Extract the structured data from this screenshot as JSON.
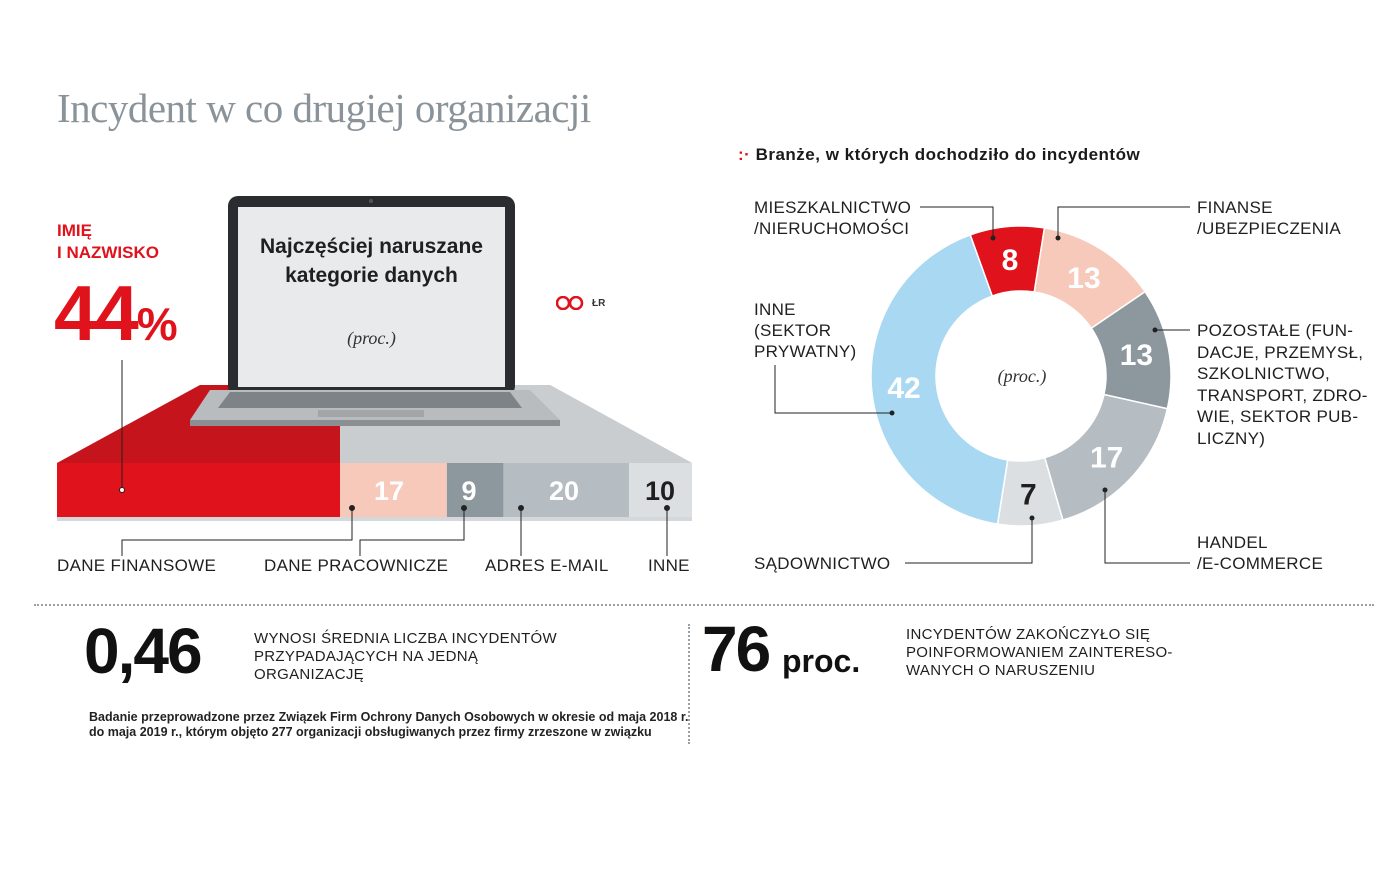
{
  "title": "Incydent w co drugiej organizacji",
  "colors": {
    "red": "#e0121b",
    "pink": "#f6c9bb",
    "dark_gray": "#8d979e",
    "mid_gray": "#b5bcc2",
    "light_gray": "#dcdfe1",
    "light_blue": "#a9d8f3"
  },
  "chart_data": [
    {
      "type": "bar",
      "orientation": "horizontal-stacked",
      "title": "Najczęściej naruszane kategorie danych",
      "unit_note": "(proc.)",
      "source_logo": "ŁR",
      "highlight": {
        "label_line1": "IMIĘ",
        "label_line2": "I NAZWISKO",
        "value": 44,
        "value_text": "44",
        "pct_sign": "%"
      },
      "segments": [
        {
          "label": "",
          "value": 44
        },
        {
          "label": "DANE FINANSOWE",
          "value": 17,
          "value_text": "17"
        },
        {
          "label": "DANE PRACOWNICZE",
          "value": 9,
          "value_text": "9"
        },
        {
          "label": "ADRES E-MAIL",
          "value": 20,
          "value_text": "20"
        },
        {
          "label": "INNE",
          "value": 10,
          "value_text": "10"
        }
      ]
    },
    {
      "type": "pie",
      "variant": "donut",
      "title": "Branże, w których dochodziło do incydentów",
      "center_label": "(proc.)",
      "slices": [
        {
          "label": "MIESZKALNICTWO /NIERUCHOMOŚCI",
          "label_lines": [
            "MIESZKALNICTWO",
            "/NIERUCHOMOŚCI"
          ],
          "value": 8
        },
        {
          "label": "FINANSE /UBEZPIECZENIA",
          "label_lines": [
            "FINANSE",
            "/UBEZPIECZENIA"
          ],
          "value": 13
        },
        {
          "label": "POZOSTAŁE (FUNDACJE, PRZEMYSŁ, SZKOLNICTWO, TRANSPORT, ZDROWIE, SEKTOR PUBLICZNY)",
          "label_lines": [
            "POZOSTAŁE (FUN-",
            "DACJE, PRZEMYSŁ,",
            "SZKOLNICTWO,",
            "TRANSPORT, ZDRO-",
            "WIE, SEKTOR PUB-",
            "LICZNY)"
          ],
          "value": 13
        },
        {
          "label": "HANDEL /E-COMMERCE",
          "label_lines": [
            "HANDEL",
            "/E-COMMERCE"
          ],
          "value": 17
        },
        {
          "label": "SĄDOWNICTWO",
          "label_lines": [
            "SĄDOWNICTWO"
          ],
          "value": 7
        },
        {
          "label": "INNE (SEKTOR PRYWATNY)",
          "label_lines": [
            "INNE",
            "(SEKTOR",
            "PRYWATNY)"
          ],
          "value": 42
        }
      ]
    }
  ],
  "stats": {
    "avg_value": "0,46",
    "avg_text": [
      "WYNOSI ŚREDNIA LICZBA INCYDENTÓW",
      "PRZYPADAJĄCYCH NA JEDNĄ",
      "ORGANIZACJĘ"
    ],
    "informed_value": "76",
    "informed_unit": "proc.",
    "informed_text": [
      "INCYDENTÓW ZAKOŃCZYŁO SIĘ",
      "POINFORMOWANIEM ZAINTERESO-",
      "WANYCH O NARUSZENIU"
    ]
  },
  "footnote": [
    "Badanie przeprowadzone przez Związek Firm Ochrony Danych Osobowych w okresie od maja 2018 r.",
    "do maja 2019 r., którym objęto 277 organizacji obsługiwanych przez firmy zrzeszone w związku"
  ]
}
